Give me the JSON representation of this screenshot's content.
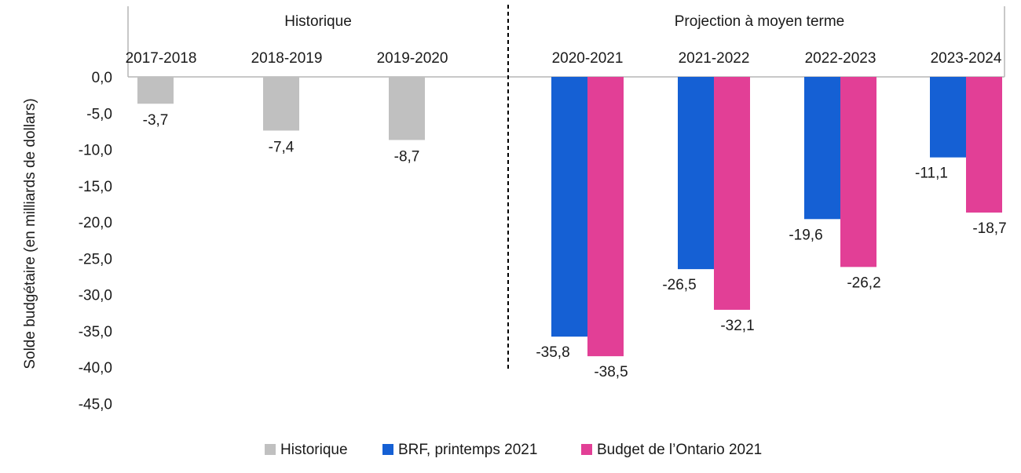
{
  "chart_data": {
    "type": "bar",
    "ylabel": "Solde budgétaire (en milliards de dollars)",
    "ylim": [
      -45,
      0
    ],
    "yticks": [
      0,
      -5,
      -10,
      -15,
      -20,
      -25,
      -30,
      -35,
      -40,
      -45
    ],
    "ytick_labels": [
      "0,0",
      "-5,0",
      "-10,0",
      "-15,0",
      "-20,0",
      "-25,0",
      "-30,0",
      "-35,0",
      "-40,0",
      "-45,0"
    ],
    "x_axis_position": "top",
    "sections": [
      {
        "label": "Historique",
        "categories": [
          "2017-2018",
          "2018-2019",
          "2019-2020"
        ]
      },
      {
        "label": "Projection à moyen terme",
        "categories": [
          "2020-2021",
          "2021-2022",
          "2022-2023",
          "2023-2024"
        ]
      }
    ],
    "categories": [
      "2017-2018",
      "2018-2019",
      "2019-2020",
      "2020-2021",
      "2021-2022",
      "2022-2023",
      "2023-2024"
    ],
    "series": [
      {
        "name": "Historique",
        "color": "#c0c0c0",
        "values": [
          -3.7,
          -7.4,
          -8.7,
          null,
          null,
          null,
          null
        ],
        "labels": [
          "-3,7",
          "-7,4",
          "-8,7",
          null,
          null,
          null,
          null
        ]
      },
      {
        "name": "BRF, printemps 2021",
        "color": "#1560d4",
        "values": [
          null,
          null,
          null,
          -35.8,
          -26.5,
          -19.6,
          -11.1
        ],
        "labels": [
          null,
          null,
          null,
          "-35,8",
          "-26,5",
          "-19,6",
          "-11,1"
        ]
      },
      {
        "name": "Budget de l’Ontario 2021",
        "color": "#e23f96",
        "values": [
          null,
          null,
          null,
          -38.5,
          -32.1,
          -26.2,
          -18.7
        ],
        "labels": [
          null,
          null,
          null,
          "-38,5",
          "-32,1",
          "-26,2",
          "-18,7"
        ]
      }
    ],
    "legend_position": "bottom",
    "grid": false
  }
}
